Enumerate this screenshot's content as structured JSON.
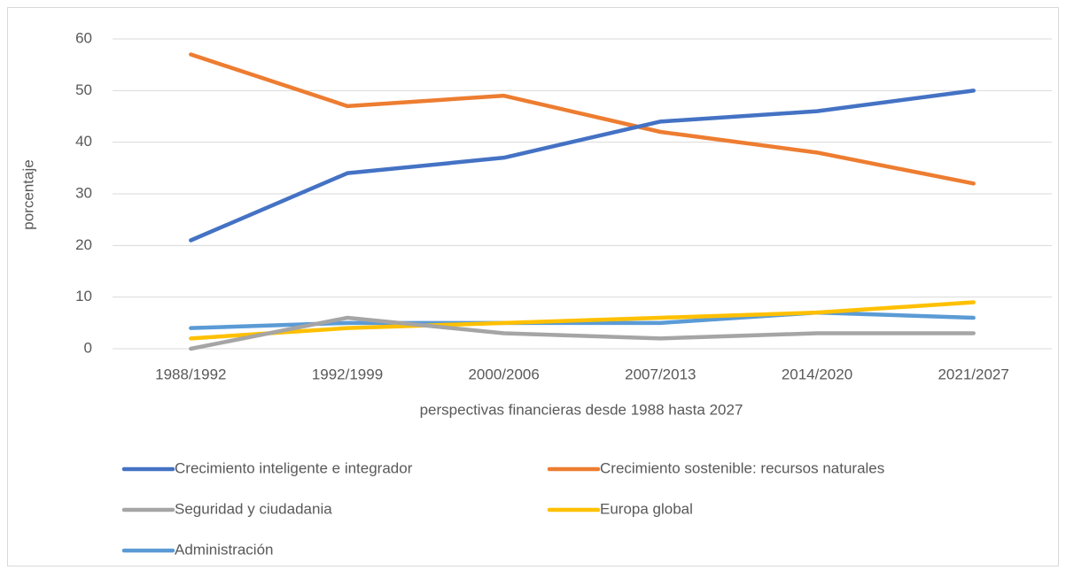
{
  "chart_data": {
    "type": "line",
    "x_label": "perspectivas financieras desde 1988 hasta 2027",
    "y_label": "porcentaje",
    "categories": [
      "1988/1992",
      "1992/1999",
      "2000/2006",
      "2007/2013",
      "2014/2020",
      "2021/2027"
    ],
    "series": [
      {
        "name": "Crecimiento inteligente e integrador",
        "color": "#4472c4",
        "values": [
          21,
          34,
          37,
          44,
          46,
          50
        ]
      },
      {
        "name": "Crecimiento sostenible: recursos naturales",
        "color": "#ed7d31",
        "values": [
          57,
          47,
          49,
          42,
          38,
          32
        ]
      },
      {
        "name": "Seguridad y ciudadania",
        "color": "#a5a5a5",
        "values": [
          0,
          6,
          3,
          2,
          3,
          3
        ]
      },
      {
        "name": "Europa global",
        "color": "#ffc000",
        "values": [
          2,
          4,
          5,
          6,
          7,
          9
        ]
      },
      {
        "name": "Administración",
        "color": "#5b9bd5",
        "values": [
          4,
          5,
          5,
          5,
          7,
          6
        ]
      }
    ],
    "ylim": [
      0,
      60
    ],
    "yticks": [
      0,
      10,
      20,
      30,
      40,
      50,
      60
    ],
    "grid": true
  }
}
